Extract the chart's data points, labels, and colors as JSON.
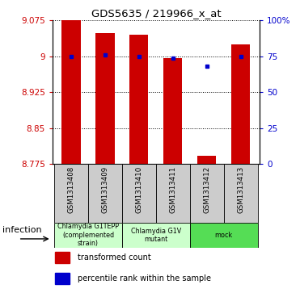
{
  "title": "GDS5635 / 219966_x_at",
  "samples": [
    "GSM1313408",
    "GSM1313409",
    "GSM1313410",
    "GSM1313411",
    "GSM1313412",
    "GSM1313413"
  ],
  "transformed_counts": [
    9.075,
    9.049,
    9.046,
    8.997,
    8.793,
    9.025
  ],
  "percentile_ranks": [
    75,
    76,
    75,
    74,
    68,
    75
  ],
  "ylim_left": [
    8.775,
    9.075
  ],
  "ylim_right": [
    0,
    100
  ],
  "yticks_left": [
    8.775,
    8.85,
    8.925,
    9.0,
    9.075
  ],
  "yticks_right": [
    0,
    25,
    50,
    75,
    100
  ],
  "ytick_labels_left": [
    "8.775",
    "8.85",
    "8.925",
    "9",
    "9.075"
  ],
  "ytick_labels_right": [
    "0",
    "25",
    "50",
    "75",
    "100%"
  ],
  "bar_color": "#cc0000",
  "dot_color": "#0000cc",
  "bar_width": 0.55,
  "groups": [
    {
      "label": "Chlamydia G1TEPP\n(complemented\nstrain)",
      "start": 0,
      "end": 1,
      "color": "#ccffcc"
    },
    {
      "label": "Chlamydia G1V\nmutant",
      "start": 2,
      "end": 3,
      "color": "#ccffcc"
    },
    {
      "label": "mock",
      "start": 4,
      "end": 5,
      "color": "#55dd55"
    }
  ],
  "sample_bg_color": "#cccccc",
  "factor_label": "infection",
  "legend_items": [
    {
      "color": "#cc0000",
      "label": "transformed count"
    },
    {
      "color": "#0000cc",
      "label": "percentile rank within the sample"
    }
  ]
}
